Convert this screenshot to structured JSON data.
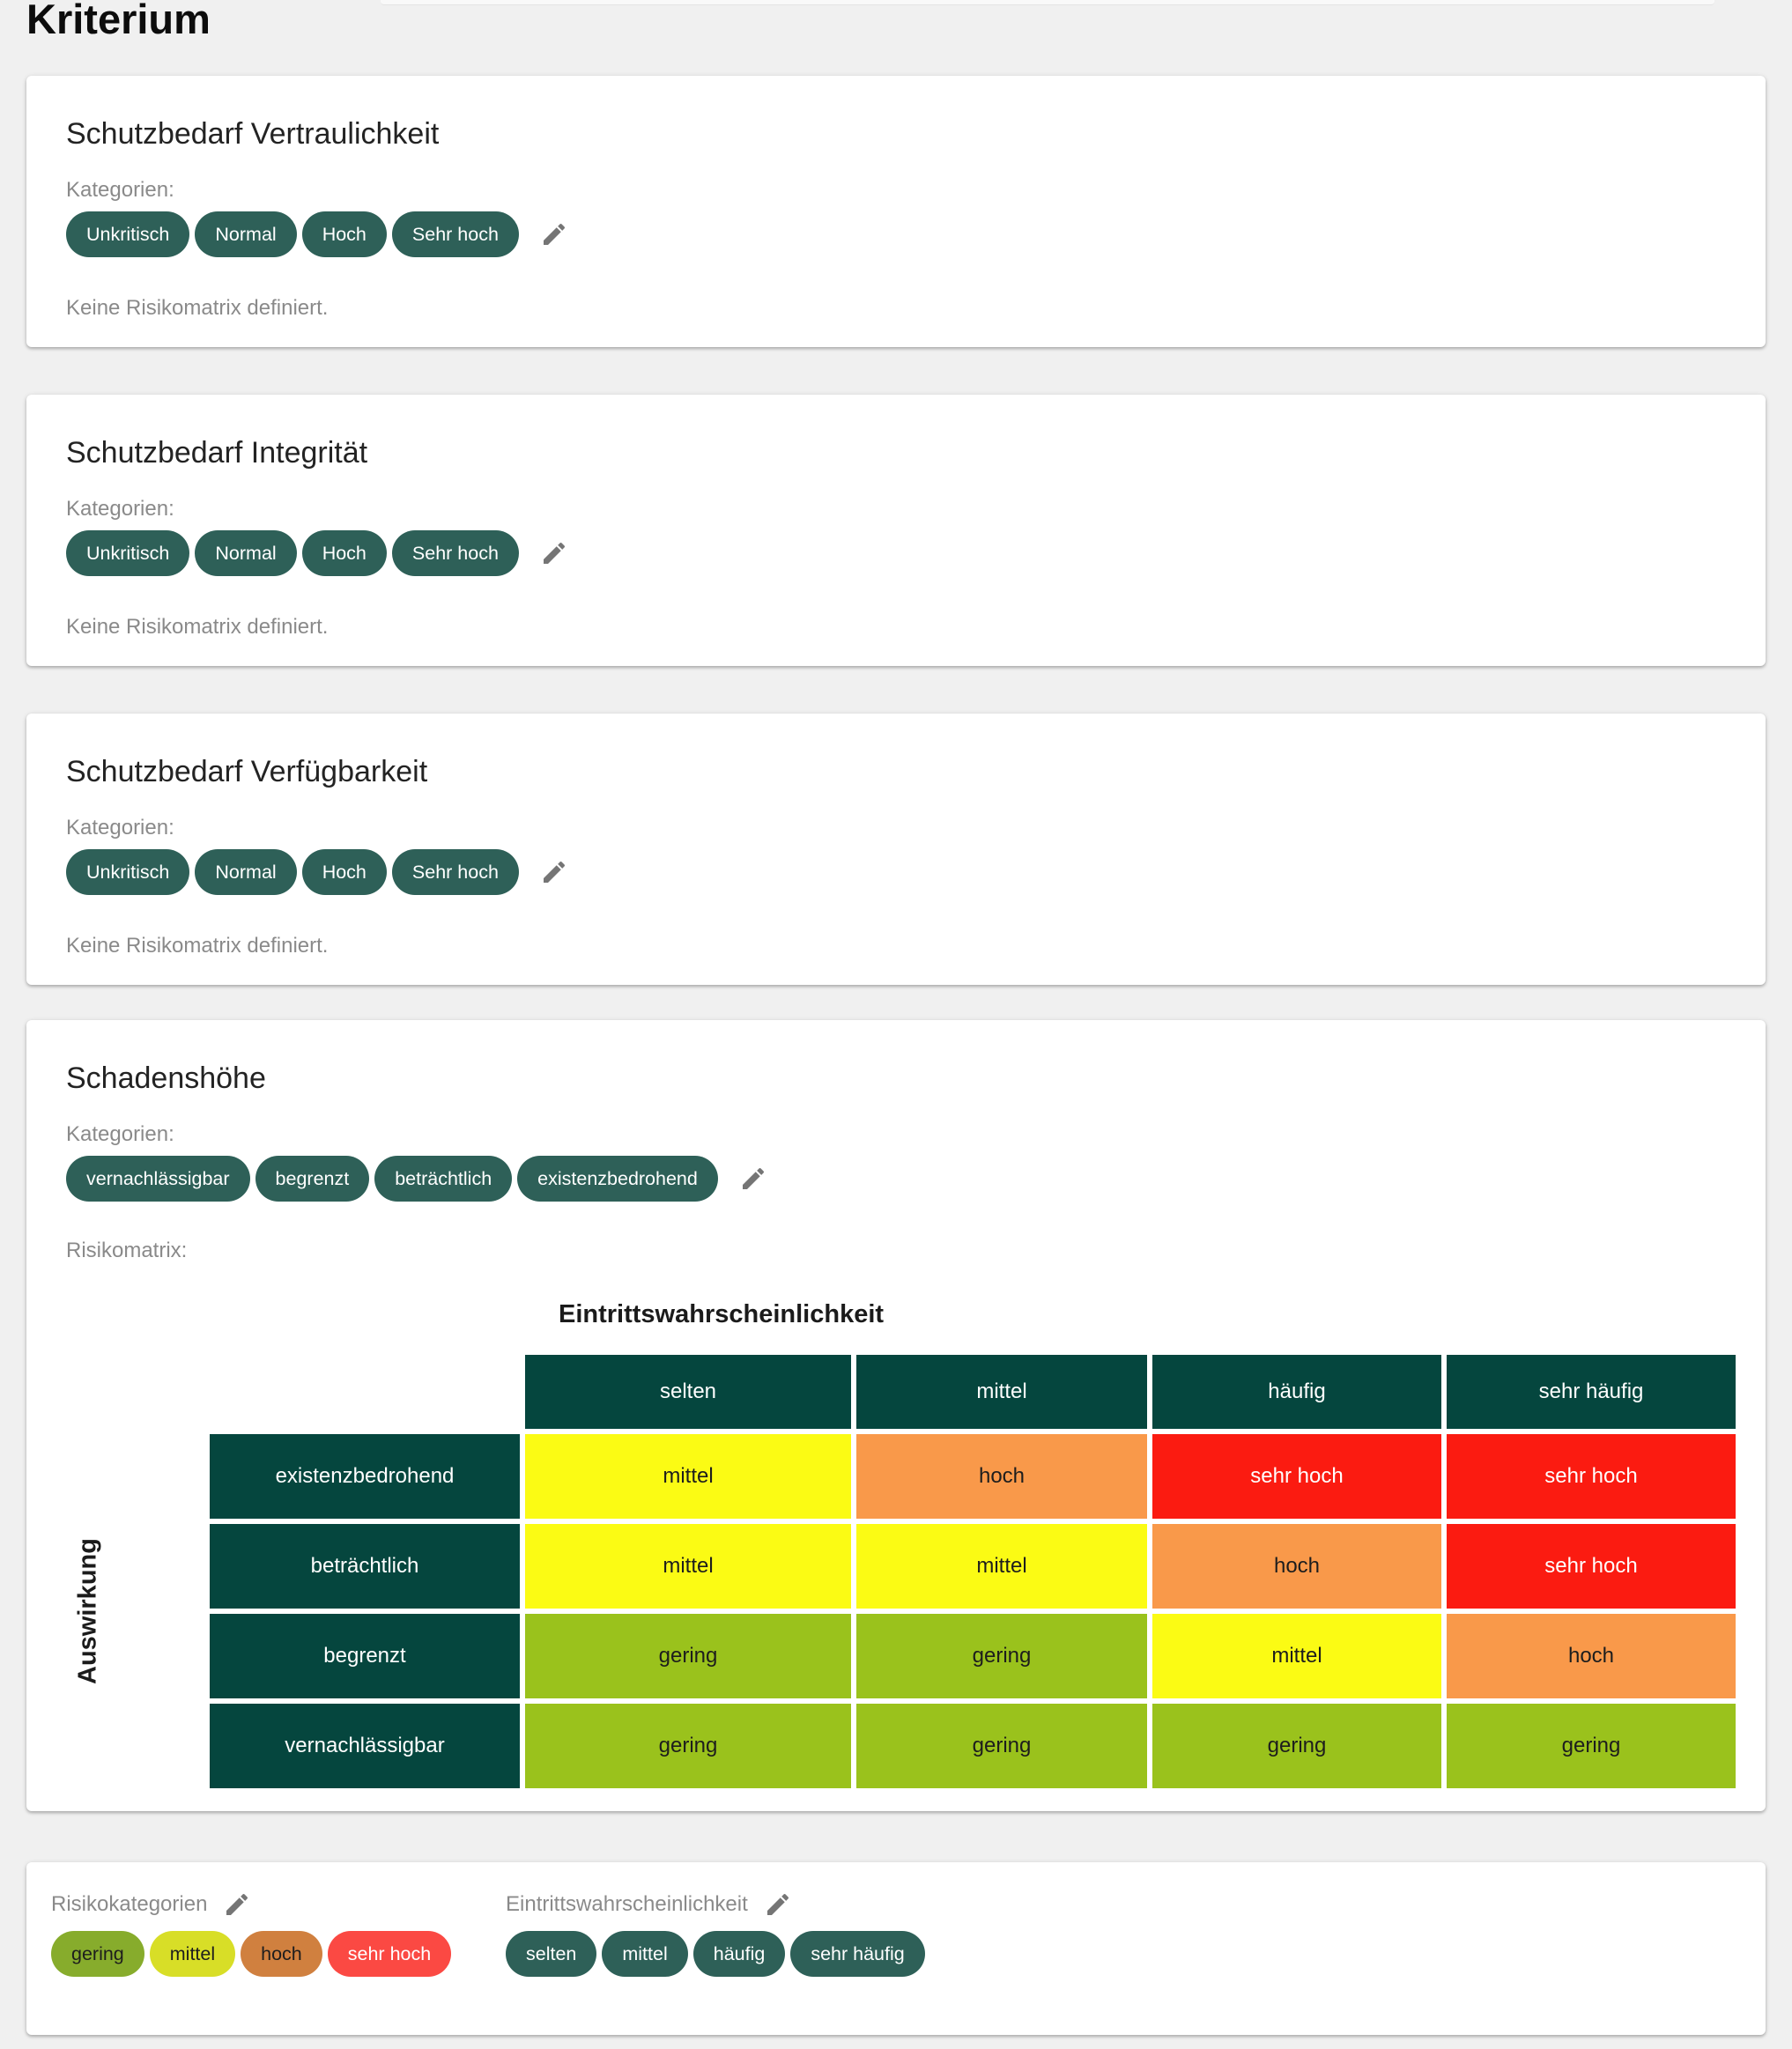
{
  "page": {
    "title": "Kriterium"
  },
  "colors": {
    "chip_teal": "#2E6058",
    "matrix_teal": "#05463E",
    "pencil_gray": "#757575",
    "matrix_levels": {
      "gering": {
        "bg": "#9AC21C",
        "text": "#1d1d1d"
      },
      "mittel": {
        "bg": "#FBFB14",
        "text": "#1d1d1d"
      },
      "hoch": {
        "bg": "#F9994A",
        "text": "#1d1d1d"
      },
      "sehr hoch": {
        "bg": "#FB1B11",
        "text": "#ffffff"
      }
    },
    "chip_levels": {
      "gering": {
        "bg": "#87AC2C",
        "text": "#1d1d1d"
      },
      "mittel": {
        "bg": "#D8DE27",
        "text": "#1d1d1d"
      },
      "hoch": {
        "bg": "#D0803F",
        "text": "#1d1d1d"
      },
      "sehr hoch": {
        "bg": "#FB4943",
        "text": "#ffffff"
      }
    }
  },
  "criteria_cards": [
    {
      "title": "Schutzbedarf Vertraulichkeit",
      "categories_label": "Kategorien:",
      "categories": [
        "Unkritisch",
        "Normal",
        "Hoch",
        "Sehr hoch"
      ],
      "no_matrix_text": "Keine Risikomatrix definiert."
    },
    {
      "title": "Schutzbedarf Integrität",
      "categories_label": "Kategorien:",
      "categories": [
        "Unkritisch",
        "Normal",
        "Hoch",
        "Sehr hoch"
      ],
      "no_matrix_text": "Keine Risikomatrix definiert."
    },
    {
      "title": "Schutzbedarf Verfügbarkeit",
      "categories_label": "Kategorien:",
      "categories": [
        "Unkritisch",
        "Normal",
        "Hoch",
        "Sehr hoch"
      ],
      "no_matrix_text": "Keine Risikomatrix definiert."
    }
  ],
  "damage_card": {
    "title": "Schadenshöhe",
    "categories_label": "Kategorien:",
    "categories": [
      "vernachlässigbar",
      "begrenzt",
      "beträchtlich",
      "existenzbedrohend"
    ],
    "matrix_label": "Risikomatrix:",
    "matrix": {
      "x_axis_label": "Eintrittswahrscheinlichkeit",
      "y_axis_label": "Auswirkung",
      "columns": [
        "selten",
        "mittel",
        "häufig",
        "sehr häufig"
      ],
      "rows": [
        "existenzbedrohend",
        "beträchtlich",
        "begrenzt",
        "vernachlässigbar"
      ],
      "cells": [
        [
          "mittel",
          "hoch",
          "sehr hoch",
          "sehr hoch"
        ],
        [
          "mittel",
          "mittel",
          "hoch",
          "sehr hoch"
        ],
        [
          "gering",
          "gering",
          "mittel",
          "hoch"
        ],
        [
          "gering",
          "gering",
          "gering",
          "gering"
        ]
      ]
    }
  },
  "settings_card": {
    "risk_categories": {
      "label": "Risikokategorien",
      "chips": [
        "gering",
        "mittel",
        "hoch",
        "sehr hoch"
      ]
    },
    "probability": {
      "label": "Eintrittswahrscheinlichkeit",
      "chips": [
        "selten",
        "mittel",
        "häufig",
        "sehr häufig"
      ]
    }
  }
}
